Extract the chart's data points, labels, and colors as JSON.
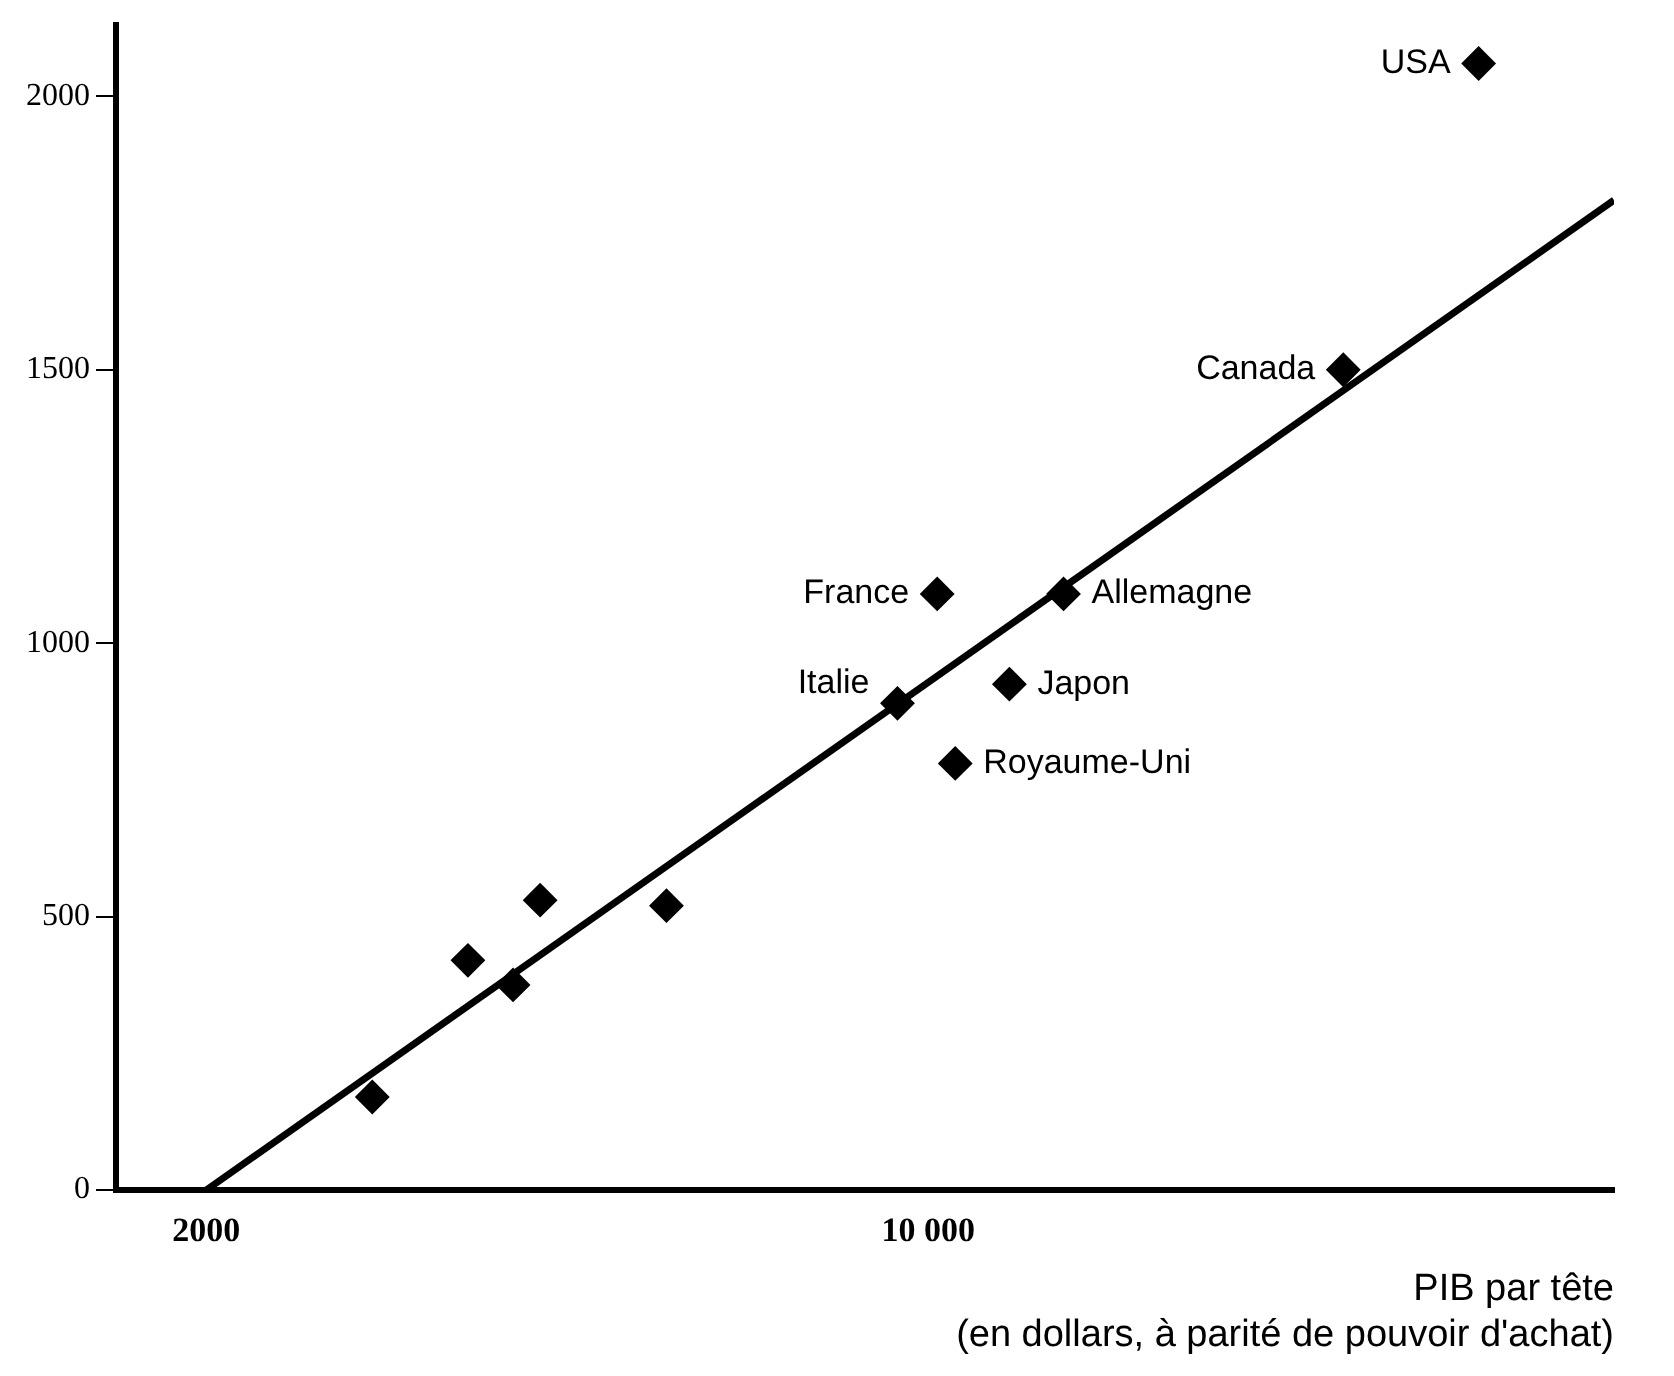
{
  "chart_data": {
    "type": "scatter",
    "xlabel": "PIB par tête\n(en dollars, à parité de pouvoir d'achat)",
    "x": [
      3840,
      4900,
      5400,
      5700,
      7100,
      9660,
      10100,
      11500,
      10900,
      10300,
      14600,
      16100
    ],
    "values": [
      170,
      420,
      375,
      530,
      520,
      890,
      1090,
      1090,
      925,
      780,
      1500,
      2060
    ],
    "color": "#000000",
    "marker": "diamond",
    "grid": false,
    "legend": false,
    "xlim": [
      1000,
      17600
    ],
    "xticks": [
      2000,
      {
        "value": 10000,
        "label": "10 000"
      }
    ],
    "ylim": [
      0,
      2130
    ],
    "yticks": [
      0,
      500,
      1000,
      1500,
      2000
    ],
    "series": [
      {
        "type": "line",
        "marker": "none",
        "x": [
          2000,
          17600
        ],
        "values": [
          0,
          1810
        ],
        "color": "#000000"
      }
    ],
    "annotations": [
      {
        "text": "Italie",
        "x": 9660,
        "y": 890
      },
      {
        "text": "France",
        "x": 10100,
        "y": 1090
      },
      {
        "text": "Allemagne",
        "x": 11500,
        "y": 1090
      },
      {
        "text": "Japon",
        "x": 10900,
        "y": 925
      },
      {
        "text": "Royaume-Uni",
        "x": 10300,
        "y": 780
      },
      {
        "text": "Canada",
        "x": 14600,
        "y": 1500
      },
      {
        "text": "USA",
        "x": 16100,
        "y": 2060
      }
    ]
  }
}
